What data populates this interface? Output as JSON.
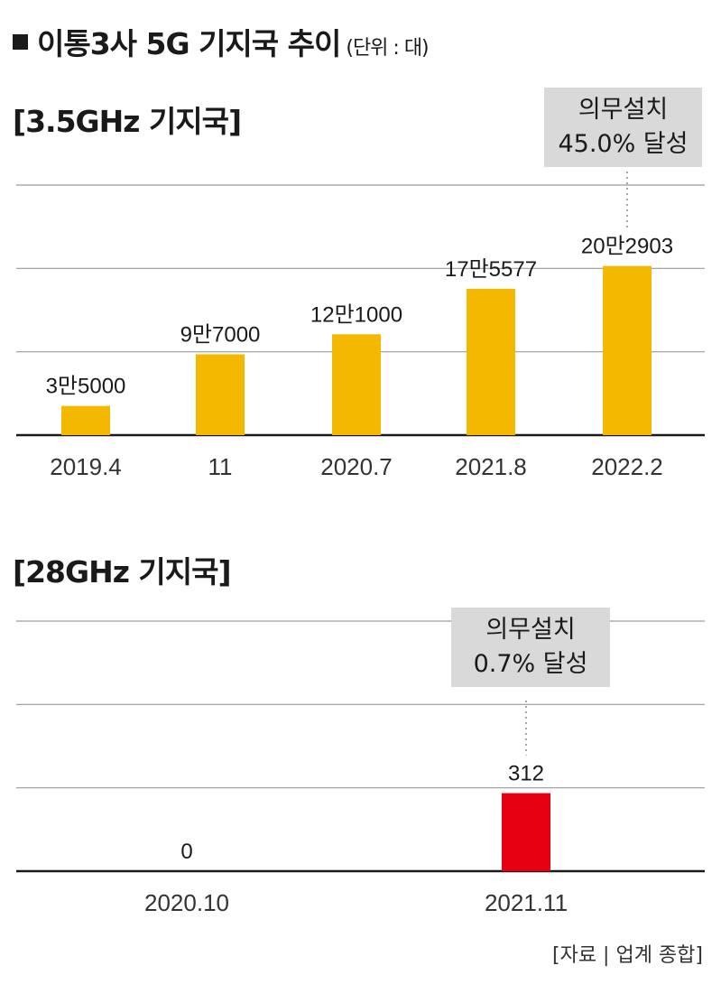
{
  "header": {
    "title": "이통3사 5G 기지국 추이",
    "unit": "(단위 : 대)"
  },
  "chart_data": [
    {
      "type": "bar",
      "title": "[3.5GHz 기지국]",
      "categories": [
        "2019.4",
        "11",
        "2020.7",
        "2021.8",
        "2022.2"
      ],
      "values": [
        35000,
        97000,
        121000,
        175577,
        202903
      ],
      "value_labels": [
        "3만5000",
        "9만7000",
        "12만1000",
        "17만5577",
        "20만2903"
      ],
      "bar_color": "#f5b800",
      "ylim": [
        0,
        300000
      ],
      "grid": true,
      "annotation": {
        "category": "2022.2",
        "lines": [
          "의무설치",
          "45.0% 달성"
        ]
      }
    },
    {
      "type": "bar",
      "title": "[28GHz 기지국]",
      "categories": [
        "2020.10",
        "2021.11"
      ],
      "values": [
        0,
        312
      ],
      "value_labels": [
        "0",
        "312"
      ],
      "bar_color": "#e60012",
      "ylim": [
        0,
        1000
      ],
      "grid": true,
      "annotation": {
        "category": "2021.11",
        "lines": [
          "의무설치",
          "0.7% 달성"
        ]
      }
    }
  ],
  "source": "[자료 | 업계 종합]"
}
